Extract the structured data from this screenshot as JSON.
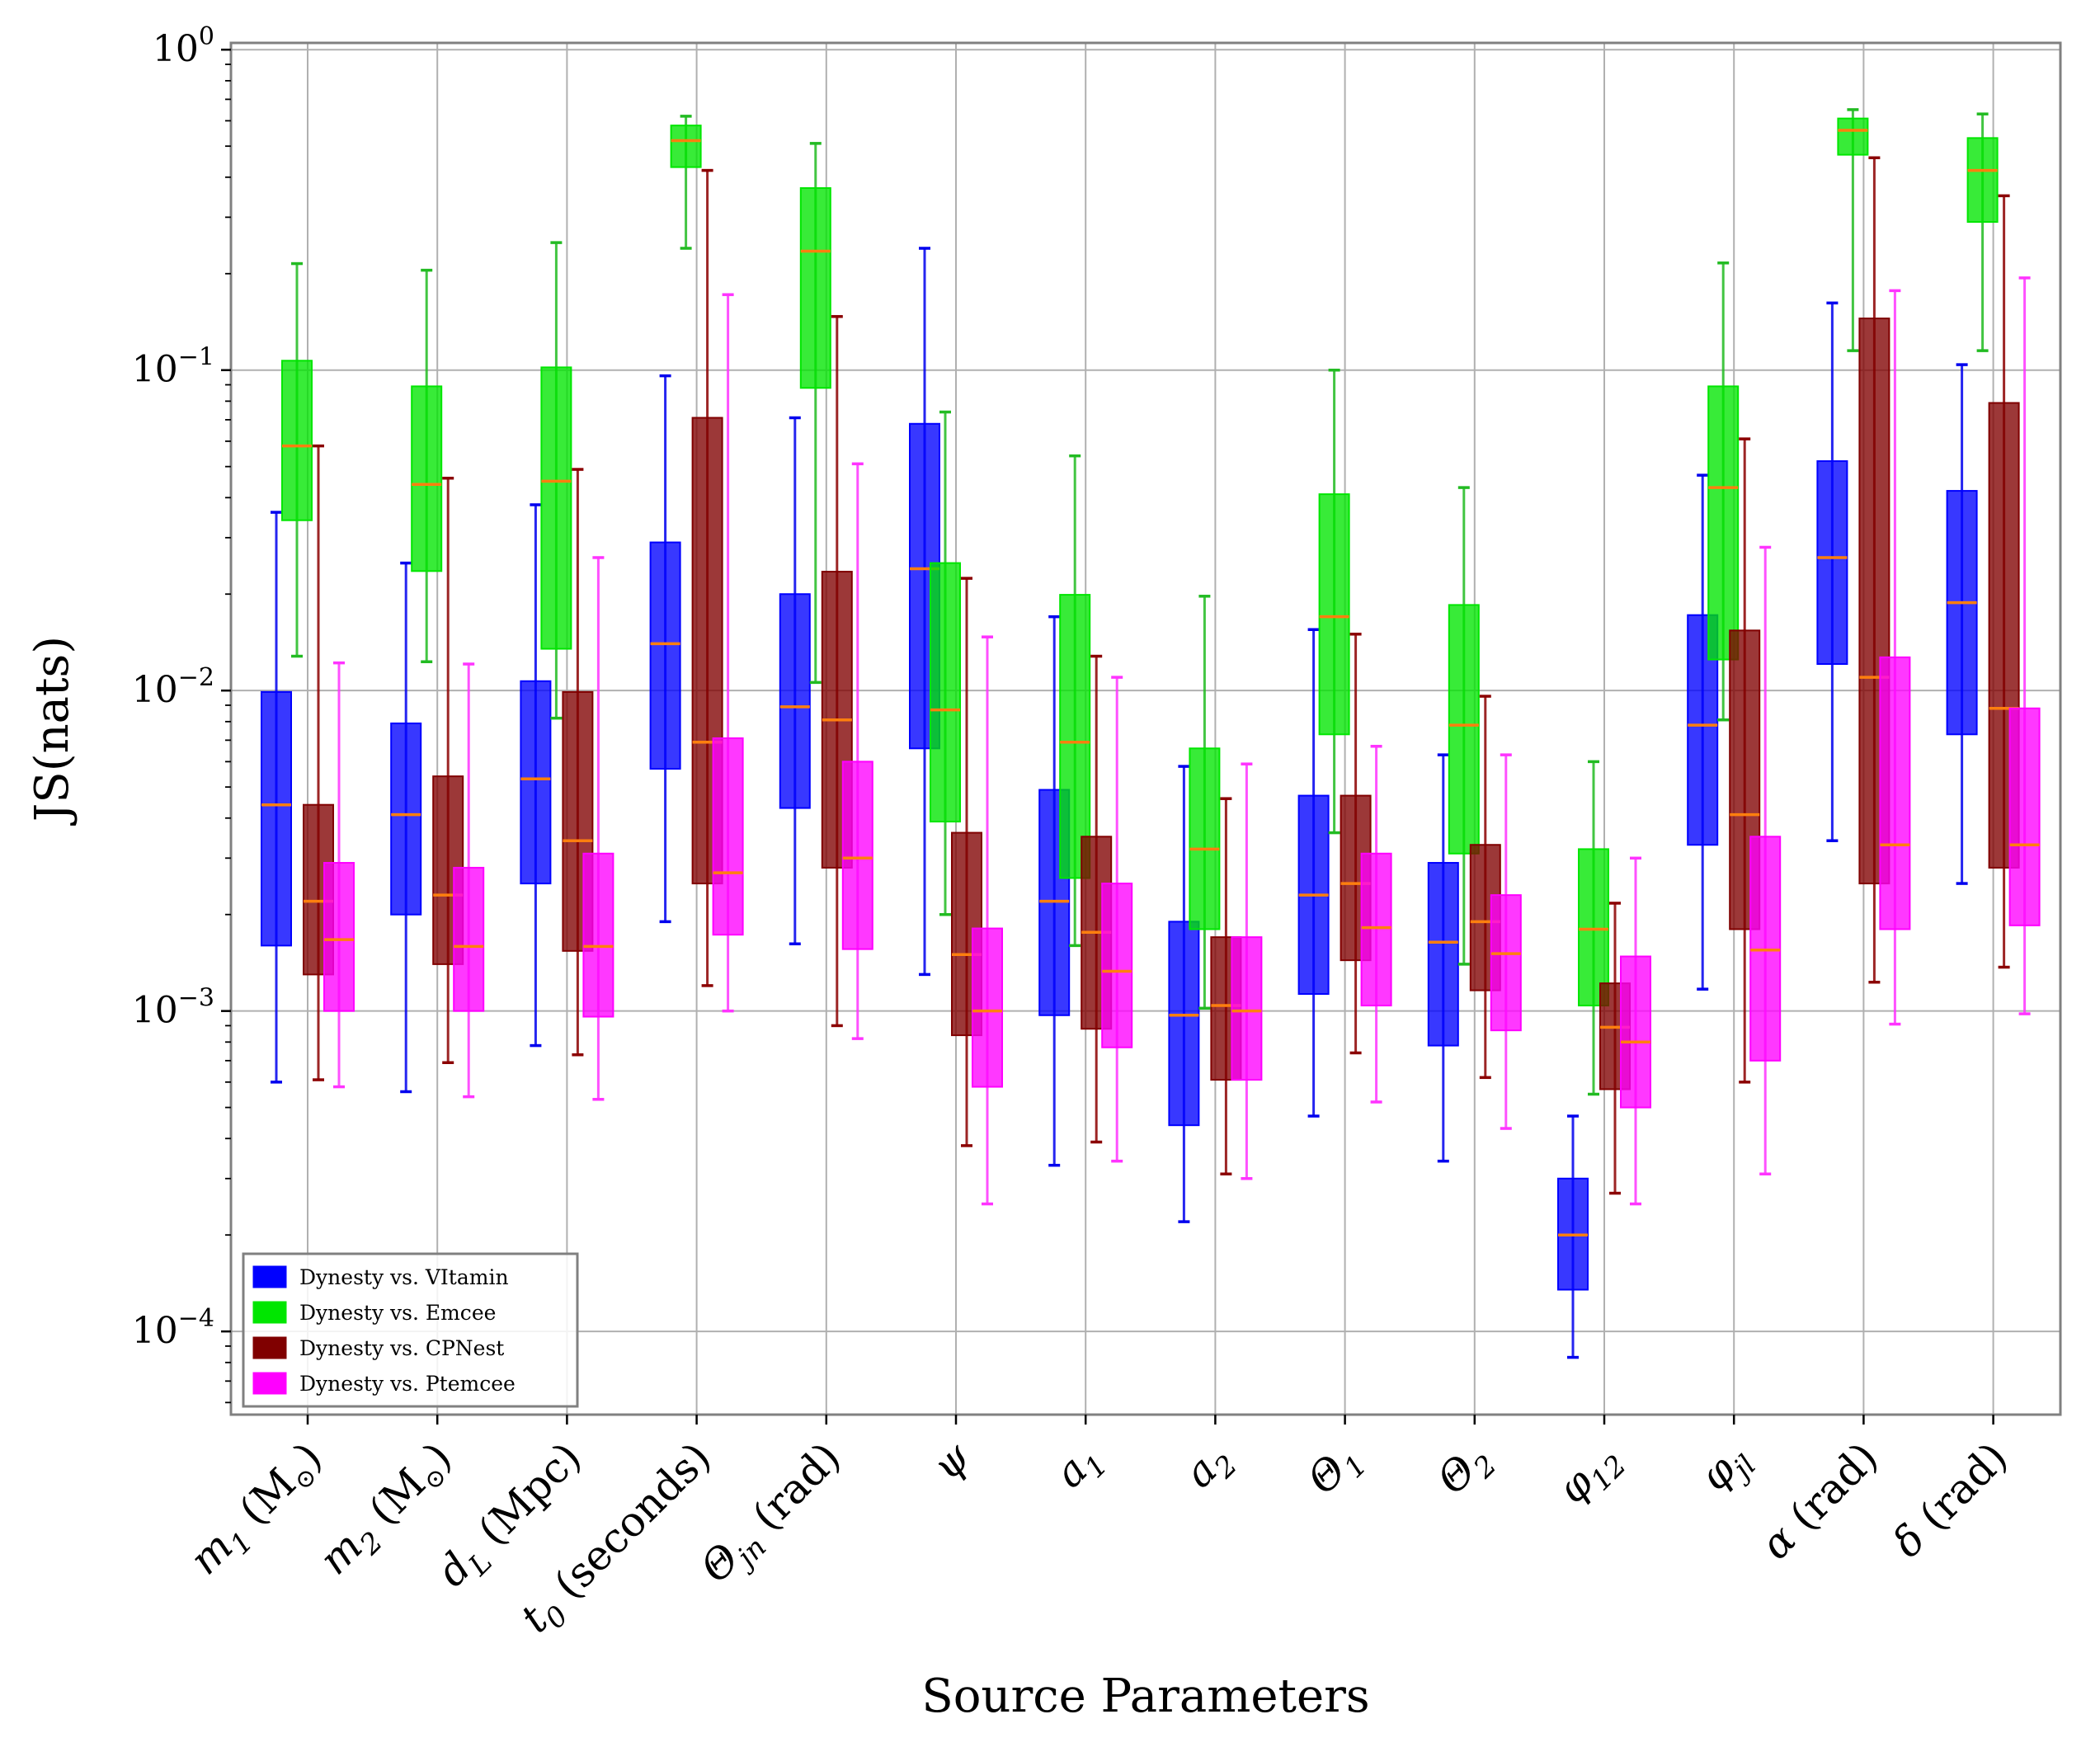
{
  "chart_data": {
    "type": "box",
    "title": "",
    "xlabel": "Source Parameters",
    "ylabel": "JS(nats)",
    "yscale": "log",
    "ylim": [
      5.5e-05,
      1.05
    ],
    "yticks": [
      {
        "value": 1,
        "base": "10",
        "exp": "0"
      },
      {
        "value": 0.1,
        "base": "10",
        "exp": "−1"
      },
      {
        "value": 0.01,
        "base": "10",
        "exp": "−2"
      },
      {
        "value": 0.001,
        "base": "10",
        "exp": "−3"
      },
      {
        "value": 0.0001,
        "base": "10",
        "exp": "−4"
      }
    ],
    "grid": true,
    "legend_position": "lower-left",
    "categories": [
      {
        "main": "m",
        "sub": "1",
        "unit": "(M",
        "sun": "⊙",
        "close": ")"
      },
      {
        "main": "m",
        "sub": "2",
        "unit": "(M",
        "sun": "⊙",
        "close": ")"
      },
      {
        "main": "d",
        "sub": "L",
        "unit": "(Mpc)"
      },
      {
        "main": "t",
        "sub": "0",
        "unit": "(seconds)"
      },
      {
        "main": "Θ",
        "sub": "jn",
        "unit": "(rad)"
      },
      {
        "main": "ψ"
      },
      {
        "main": "a",
        "sub": "1"
      },
      {
        "main": "a",
        "sub": "2"
      },
      {
        "main": "Θ",
        "sub": "1"
      },
      {
        "main": "Θ",
        "sub": "2"
      },
      {
        "main": "φ",
        "sub": "12"
      },
      {
        "main": "φ",
        "sub": "jl"
      },
      {
        "main": "α",
        "unit": "(rad)"
      },
      {
        "main": "δ",
        "unit": "(rad)"
      }
    ],
    "series": [
      {
        "name": "Dynesty vs. VItamin",
        "color": "#0000ff",
        "whisker_color": "#0000ee",
        "median_color": "#ff7f0e",
        "boxes": [
          {
            "wlo": 0.0006,
            "q1": 0.0016,
            "med": 0.0044,
            "q3": 0.0099,
            "whi": 0.036
          },
          {
            "wlo": 0.00056,
            "q1": 0.002,
            "med": 0.0041,
            "q3": 0.0079,
            "whi": 0.025
          },
          {
            "wlo": 0.00078,
            "q1": 0.0025,
            "med": 0.0053,
            "q3": 0.0107,
            "whi": 0.038
          },
          {
            "wlo": 0.0019,
            "q1": 0.0057,
            "med": 0.014,
            "q3": 0.029,
            "whi": 0.096
          },
          {
            "wlo": 0.00162,
            "q1": 0.0043,
            "med": 0.0089,
            "q3": 0.02,
            "whi": 0.071
          },
          {
            "wlo": 0.0013,
            "q1": 0.0066,
            "med": 0.024,
            "q3": 0.068,
            "whi": 0.24
          },
          {
            "wlo": 0.00033,
            "q1": 0.00097,
            "med": 0.0022,
            "q3": 0.0049,
            "whi": 0.017
          },
          {
            "wlo": 0.00022,
            "q1": 0.00044,
            "med": 0.00097,
            "q3": 0.0019,
            "whi": 0.0058
          },
          {
            "wlo": 0.00047,
            "q1": 0.00113,
            "med": 0.0023,
            "q3": 0.0047,
            "whi": 0.0155
          },
          {
            "wlo": 0.00034,
            "q1": 0.00078,
            "med": 0.00164,
            "q3": 0.0029,
            "whi": 0.0063
          },
          {
            "wlo": 8.3e-05,
            "q1": 0.000135,
            "med": 0.0002,
            "q3": 0.0003,
            "whi": 0.00047
          },
          {
            "wlo": 0.00117,
            "q1": 0.0033,
            "med": 0.0078,
            "q3": 0.0172,
            "whi": 0.047
          },
          {
            "wlo": 0.0034,
            "q1": 0.0121,
            "med": 0.026,
            "q3": 0.052,
            "whi": 0.162
          },
          {
            "wlo": 0.0025,
            "q1": 0.0073,
            "med": 0.0188,
            "q3": 0.042,
            "whi": 0.104
          }
        ]
      },
      {
        "name": "Dynesty vs. Emcee",
        "color": "#00e600",
        "whisker_color": "#22bb22",
        "median_color": "#ff7f0e",
        "boxes": [
          {
            "wlo": 0.0128,
            "q1": 0.034,
            "med": 0.058,
            "q3": 0.107,
            "whi": 0.215
          },
          {
            "wlo": 0.0123,
            "q1": 0.0236,
            "med": 0.044,
            "q3": 0.089,
            "whi": 0.205
          },
          {
            "wlo": 0.0082,
            "q1": 0.0135,
            "med": 0.045,
            "q3": 0.102,
            "whi": 0.25
          },
          {
            "wlo": 0.24,
            "q1": 0.43,
            "med": 0.52,
            "q3": 0.58,
            "whi": 0.62
          },
          {
            "wlo": 0.0106,
            "q1": 0.088,
            "med": 0.235,
            "q3": 0.37,
            "whi": 0.51
          },
          {
            "wlo": 0.002,
            "q1": 0.0039,
            "med": 0.0087,
            "q3": 0.025,
            "whi": 0.074
          },
          {
            "wlo": 0.0016,
            "q1": 0.0026,
            "med": 0.0069,
            "q3": 0.0199,
            "whi": 0.054
          },
          {
            "wlo": 0.00102,
            "q1": 0.0018,
            "med": 0.0032,
            "q3": 0.0066,
            "whi": 0.0197
          },
          {
            "wlo": 0.0036,
            "q1": 0.0073,
            "med": 0.017,
            "q3": 0.041,
            "whi": 0.1
          },
          {
            "wlo": 0.0014,
            "q1": 0.0031,
            "med": 0.0078,
            "q3": 0.0185,
            "whi": 0.043
          },
          {
            "wlo": 0.00055,
            "q1": 0.00104,
            "med": 0.0018,
            "q3": 0.0032,
            "whi": 0.006
          },
          {
            "wlo": 0.0081,
            "q1": 0.0125,
            "med": 0.043,
            "q3": 0.089,
            "whi": 0.216
          },
          {
            "wlo": 0.115,
            "q1": 0.47,
            "med": 0.56,
            "q3": 0.61,
            "whi": 0.65
          },
          {
            "wlo": 0.115,
            "q1": 0.29,
            "med": 0.42,
            "q3": 0.53,
            "whi": 0.63
          }
        ]
      },
      {
        "name": "Dynesty vs. CPNest",
        "color": "#800000",
        "whisker_color": "#8b0000",
        "median_color": "#ff7f0e",
        "boxes": [
          {
            "wlo": 0.00061,
            "q1": 0.0013,
            "med": 0.0022,
            "q3": 0.0044,
            "whi": 0.058
          },
          {
            "wlo": 0.00069,
            "q1": 0.0014,
            "med": 0.0023,
            "q3": 0.0054,
            "whi": 0.046
          },
          {
            "wlo": 0.00073,
            "q1": 0.00154,
            "med": 0.0034,
            "q3": 0.0099,
            "whi": 0.049
          },
          {
            "wlo": 0.0012,
            "q1": 0.0025,
            "med": 0.0069,
            "q3": 0.071,
            "whi": 0.42
          },
          {
            "wlo": 0.0009,
            "q1": 0.0028,
            "med": 0.0081,
            "q3": 0.0235,
            "whi": 0.147
          },
          {
            "wlo": 0.00038,
            "q1": 0.00084,
            "med": 0.0015,
            "q3": 0.0036,
            "whi": 0.0224
          },
          {
            "wlo": 0.00039,
            "q1": 0.00088,
            "med": 0.00176,
            "q3": 0.0035,
            "whi": 0.0128
          },
          {
            "wlo": 0.00031,
            "q1": 0.00061,
            "med": 0.00104,
            "q3": 0.0017,
            "whi": 0.0046
          },
          {
            "wlo": 0.00074,
            "q1": 0.00144,
            "med": 0.0025,
            "q3": 0.0047,
            "whi": 0.015
          },
          {
            "wlo": 0.00062,
            "q1": 0.00116,
            "med": 0.0019,
            "q3": 0.0033,
            "whi": 0.0096
          },
          {
            "wlo": 0.00027,
            "q1": 0.00057,
            "med": 0.00089,
            "q3": 0.00122,
            "whi": 0.00217
          },
          {
            "wlo": 0.0006,
            "q1": 0.0018,
            "med": 0.0041,
            "q3": 0.0154,
            "whi": 0.061
          },
          {
            "wlo": 0.00123,
            "q1": 0.0025,
            "med": 0.011,
            "q3": 0.145,
            "whi": 0.46
          },
          {
            "wlo": 0.00137,
            "q1": 0.0028,
            "med": 0.0088,
            "q3": 0.079,
            "whi": 0.35
          }
        ]
      },
      {
        "name": "Dynesty vs. Ptemcee",
        "color": "#ff00ff",
        "whisker_color": "#ff33ff",
        "median_color": "#ff7f0e",
        "boxes": [
          {
            "wlo": 0.00058,
            "q1": 0.001,
            "med": 0.00167,
            "q3": 0.0029,
            "whi": 0.0122
          },
          {
            "wlo": 0.00054,
            "q1": 0.001,
            "med": 0.00159,
            "q3": 0.0028,
            "whi": 0.0121
          },
          {
            "wlo": 0.00053,
            "q1": 0.00096,
            "med": 0.00159,
            "q3": 0.0031,
            "whi": 0.026
          },
          {
            "wlo": 0.001,
            "q1": 0.00173,
            "med": 0.0027,
            "q3": 0.0071,
            "whi": 0.172
          },
          {
            "wlo": 0.00082,
            "q1": 0.00156,
            "med": 0.003,
            "q3": 0.006,
            "whi": 0.051
          },
          {
            "wlo": 0.00025,
            "q1": 0.00058,
            "med": 0.001,
            "q3": 0.00181,
            "whi": 0.0147
          },
          {
            "wlo": 0.00034,
            "q1": 0.00077,
            "med": 0.00133,
            "q3": 0.0025,
            "whi": 0.011
          },
          {
            "wlo": 0.0003,
            "q1": 0.00061,
            "med": 0.001,
            "q3": 0.0017,
            "whi": 0.0059
          },
          {
            "wlo": 0.00052,
            "q1": 0.00104,
            "med": 0.00182,
            "q3": 0.0031,
            "whi": 0.0067
          },
          {
            "wlo": 0.00043,
            "q1": 0.00087,
            "med": 0.00151,
            "q3": 0.0023,
            "whi": 0.0063
          },
          {
            "wlo": 0.00025,
            "q1": 0.0005,
            "med": 0.0008,
            "q3": 0.00148,
            "whi": 0.003
          },
          {
            "wlo": 0.00031,
            "q1": 0.0007,
            "med": 0.00155,
            "q3": 0.0035,
            "whi": 0.028
          },
          {
            "wlo": 0.00091,
            "q1": 0.0018,
            "med": 0.0033,
            "q3": 0.0127,
            "whi": 0.177
          },
          {
            "wlo": 0.00098,
            "q1": 0.00185,
            "med": 0.0033,
            "q3": 0.0088,
            "whi": 0.194
          }
        ]
      }
    ]
  }
}
